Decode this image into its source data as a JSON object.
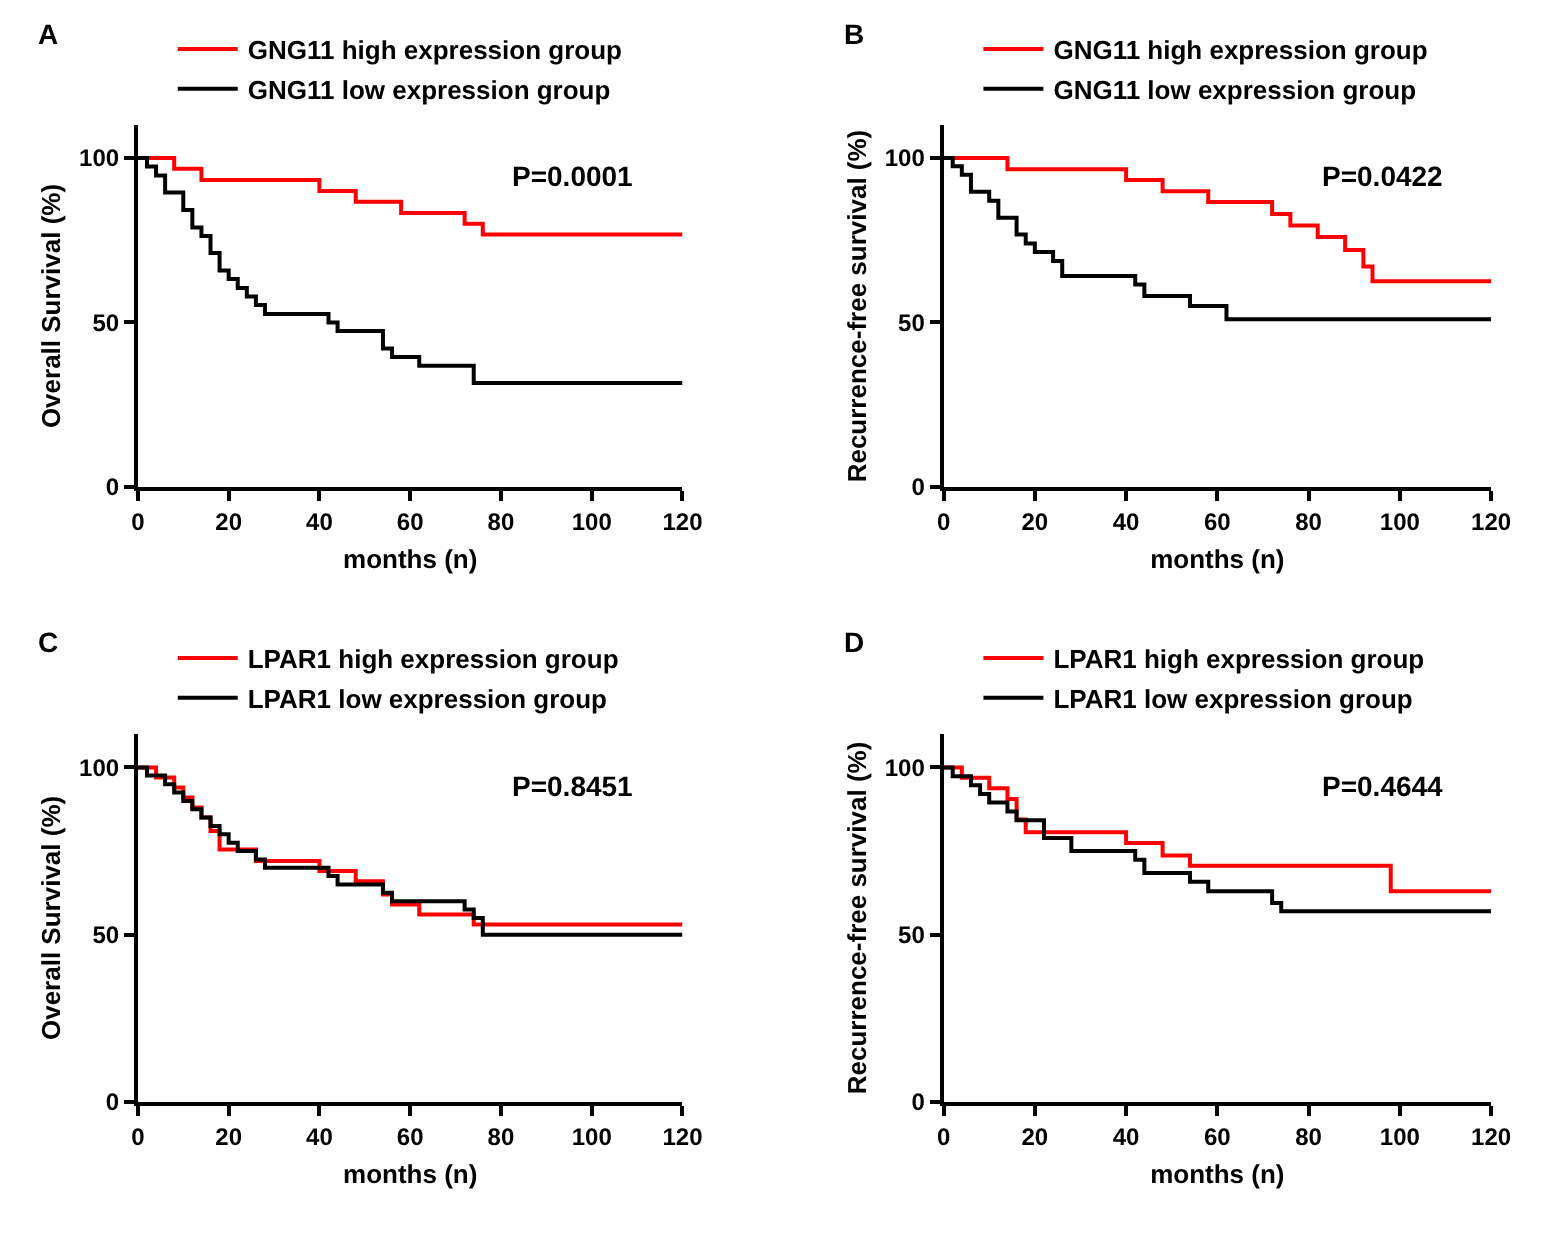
{
  "chart_data": [
    {
      "type": "step",
      "xlabel": "months (n)",
      "ylabel": "Overall Survival (%)",
      "xlim": [
        0,
        120
      ],
      "ylim": [
        0,
        110
      ],
      "xticks": [
        0,
        20,
        40,
        60,
        80,
        100,
        120
      ],
      "yticks": [
        0,
        50,
        100
      ],
      "legend": "top",
      "annotations": [
        "A",
        "P=0.0001"
      ],
      "series": [
        {
          "name": "GNG11 high expression group",
          "color": "#ff0000",
          "x": [
            0,
            8,
            14,
            40,
            48,
            58,
            72,
            76,
            120
          ],
          "values": [
            100,
            96.7,
            93.3,
            90,
            86.7,
            83.3,
            80,
            76.7,
            76.7
          ]
        },
        {
          "name": "GNG11 low expression group",
          "color": "#000000",
          "x": [
            0,
            2,
            4,
            6,
            10,
            12,
            14,
            16,
            18,
            20,
            22,
            24,
            26,
            28,
            42,
            44,
            54,
            56,
            62,
            74,
            120
          ],
          "values": [
            100,
            97.4,
            94.7,
            89.5,
            84.2,
            78.9,
            76.3,
            71.1,
            65.8,
            63.2,
            60.5,
            57.9,
            55.3,
            52.6,
            50,
            47.4,
            42.1,
            39.5,
            36.8,
            31.6,
            31.6
          ]
        }
      ]
    },
    {
      "type": "step",
      "xlabel": "months (n)",
      "ylabel": "Recurrence-free survival (%)",
      "xlim": [
        0,
        120
      ],
      "ylim": [
        0,
        110
      ],
      "xticks": [
        0,
        20,
        40,
        60,
        80,
        100,
        120
      ],
      "yticks": [
        0,
        50,
        100
      ],
      "legend": "top",
      "annotations": [
        "B",
        "P=0.0422"
      ],
      "series": [
        {
          "name": "GNG11 high expression group",
          "color": "#ff0000",
          "x": [
            0,
            14,
            40,
            48,
            58,
            72,
            76,
            82,
            88,
            92,
            94,
            120
          ],
          "values": [
            100,
            96.6,
            93.3,
            89.9,
            86.6,
            83,
            79.5,
            76,
            72,
            67,
            62.5,
            62.5
          ]
        },
        {
          "name": "GNG11 low expression group",
          "color": "#000000",
          "x": [
            0,
            2,
            4,
            6,
            10,
            12,
            16,
            18,
            20,
            24,
            26,
            42,
            44,
            54,
            62,
            120
          ],
          "values": [
            100,
            97.5,
            94.9,
            89.7,
            87,
            81.8,
            76.7,
            74,
            71.4,
            68.7,
            64.1,
            61.5,
            58,
            55,
            51,
            51
          ]
        }
      ]
    },
    {
      "type": "step",
      "xlabel": "months (n)",
      "ylabel": "Overall Survival (%)",
      "xlim": [
        0,
        120
      ],
      "ylim": [
        0,
        110
      ],
      "xticks": [
        0,
        20,
        40,
        60,
        80,
        100,
        120
      ],
      "yticks": [
        0,
        50,
        100
      ],
      "legend": "top",
      "annotations": [
        "C",
        "P=0.8451"
      ],
      "series": [
        {
          "name": "LPAR1 high expression group",
          "color": "#ff0000",
          "x": [
            0,
            4,
            8,
            10,
            12,
            14,
            16,
            18,
            26,
            40,
            48,
            54,
            56,
            62,
            74,
            120
          ],
          "values": [
            100,
            97,
            94,
            91,
            88,
            85,
            81,
            75.5,
            72,
            69,
            66,
            62,
            59,
            56,
            53,
            53
          ]
        },
        {
          "name": "LPAR1 low expression group",
          "color": "#000000",
          "x": [
            0,
            2,
            6,
            8,
            10,
            12,
            14,
            16,
            18,
            20,
            22,
            26,
            28,
            42,
            44,
            54,
            56,
            72,
            74,
            76,
            120
          ],
          "values": [
            100,
            97.6,
            95,
            92.5,
            90,
            87.5,
            85,
            82.5,
            80,
            77.5,
            75,
            72.5,
            70,
            67.5,
            65,
            62.5,
            60,
            57.5,
            55,
            50,
            50
          ]
        }
      ]
    },
    {
      "type": "step",
      "xlabel": "months (n)",
      "ylabel": "Recurrence-free survival (%)",
      "xlim": [
        0,
        120
      ],
      "ylim": [
        0,
        110
      ],
      "xticks": [
        0,
        20,
        40,
        60,
        80,
        100,
        120
      ],
      "yticks": [
        0,
        50,
        100
      ],
      "legend": "top",
      "annotations": [
        "D",
        "P=0.4644"
      ],
      "series": [
        {
          "name": "LPAR1 high expression group",
          "color": "#ff0000",
          "x": [
            0,
            4,
            10,
            14,
            16,
            18,
            40,
            48,
            54,
            98,
            120
          ],
          "values": [
            100,
            96.9,
            93.8,
            90.6,
            84.4,
            80.6,
            77.4,
            73.7,
            70.6,
            63,
            63
          ]
        },
        {
          "name": "LPAR1 low expression group",
          "color": "#000000",
          "x": [
            0,
            2,
            6,
            8,
            10,
            14,
            16,
            22,
            28,
            42,
            44,
            54,
            58,
            72,
            74,
            120
          ],
          "values": [
            100,
            97.4,
            94.7,
            92.1,
            89.5,
            86.8,
            84.2,
            78.9,
            75,
            72.4,
            68.4,
            65.8,
            63,
            59.5,
            57,
            57
          ]
        }
      ]
    }
  ]
}
